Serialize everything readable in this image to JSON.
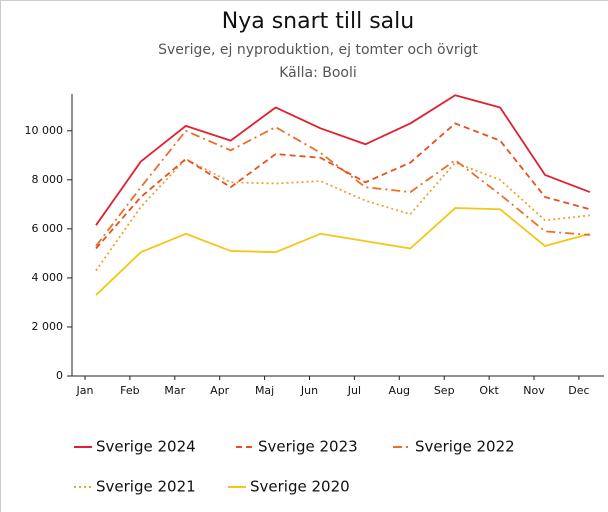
{
  "chart_data": {
    "type": "line",
    "title": "Nya snart till salu",
    "subtitle": "Sverige, ej nyproduktion, ej tomter och övrigt",
    "source": "Källa: Booli",
    "categories": [
      "Jan",
      "Feb",
      "Mar",
      "Apr",
      "Maj",
      "Jun",
      "Jul",
      "Aug",
      "Sep",
      "Okt",
      "Nov",
      "Dec"
    ],
    "series": [
      {
        "name": "Sverige 2024",
        "color": "#e0202f",
        "style": "solid",
        "values": [
          6150,
          8750,
          10200,
          9600,
          10950,
          10100,
          9450,
          10300,
          11450,
          10950,
          8200,
          7500
        ]
      },
      {
        "name": "Sverige 2023",
        "color": "#e8501c",
        "style": "dashed",
        "values": [
          5200,
          7300,
          8850,
          7700,
          9050,
          8900,
          7900,
          8700,
          10300,
          9600,
          7300,
          6800
        ]
      },
      {
        "name": "Sverige 2022",
        "color": "#e8702a",
        "style": "dashdot",
        "values": [
          5300,
          7700,
          10000,
          9200,
          10150,
          9100,
          7700,
          7500,
          8800,
          7400,
          5900,
          5750
        ]
      },
      {
        "name": "Sverige 2021",
        "color": "#f0a030",
        "style": "dotted",
        "values": [
          4300,
          6900,
          8850,
          7900,
          7850,
          7950,
          7150,
          6600,
          8700,
          8000,
          6350,
          6550
        ]
      },
      {
        "name": "Sverige 2020",
        "color": "#f5c518",
        "style": "solid",
        "values": [
          3300,
          5050,
          5800,
          5100,
          5050,
          5800,
          5500,
          5200,
          6850,
          6800,
          5300,
          5800
        ]
      }
    ],
    "ylim": [
      0,
      11500
    ],
    "yticks": [
      0,
      {
        "value": 2000,
        "label": "2 000"
      },
      {
        "value": 4000,
        "label": "4 000"
      },
      {
        "value": 6000,
        "label": "6 000"
      },
      {
        "value": 8000,
        "label": "8 000"
      },
      {
        "value": 10000,
        "label": "10 000"
      }
    ],
    "grid": false
  }
}
